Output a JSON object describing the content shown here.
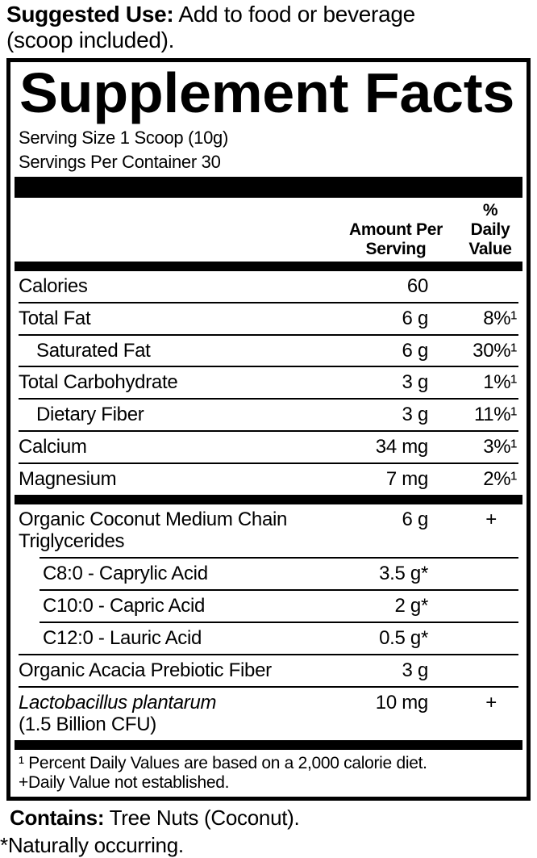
{
  "suggested_use": {
    "label": "Suggested Use:",
    "text": "Add to food or beverage (scoop included)."
  },
  "panel": {
    "title": "Supplement Facts",
    "serving_size": "Serving Size 1 Scoop (10g)",
    "servings_per_container": "Servings Per Container 30",
    "columns": {
      "amount_line1": "Amount Per",
      "amount_line2": "Serving",
      "dv_line1": "% Daily",
      "dv_line2": "Value"
    },
    "rows": [
      {
        "label": "Calories",
        "amount": "60",
        "dv": ""
      },
      {
        "label": "Total Fat",
        "amount": "6 g",
        "dv": "8%¹"
      },
      {
        "label": "Saturated Fat",
        "amount": "6 g",
        "dv": "30%¹"
      },
      {
        "label": "Total Carbohydrate",
        "amount": "3 g",
        "dv": "1%¹"
      },
      {
        "label": "Dietary Fiber",
        "amount": "3 g",
        "dv": "11%¹"
      },
      {
        "label": "Calcium",
        "amount": "34 mg",
        "dv": "3%¹"
      },
      {
        "label": "Magnesium",
        "amount": "7 mg",
        "dv": "2%¹"
      },
      {
        "label": "Organic Coconut Medium Chain Triglycerides",
        "amount": "6 g",
        "dv": "+"
      },
      {
        "label": "C8:0 - Caprylic Acid",
        "amount": "3.5 g*",
        "dv": ""
      },
      {
        "label": "C10:0 - Capric Acid",
        "amount": "2 g*",
        "dv": ""
      },
      {
        "label": "C12:0 - Lauric Acid",
        "amount": "0.5 g*",
        "dv": ""
      },
      {
        "label": "Organic Acacia Prebiotic Fiber",
        "amount": "3 g",
        "dv": ""
      },
      {
        "label": "Lactobacillus plantarum",
        "label2": "(1.5 Billion CFU)",
        "amount": "10 mg",
        "dv": "+"
      }
    ],
    "footnotes": {
      "daily_value": "¹ Percent Daily Values are based on a 2,000 calorie diet.",
      "not_established": "+Daily Value not established."
    }
  },
  "contains": {
    "label": "Contains:",
    "text": "Tree Nuts (Coconut)."
  },
  "naturally_occurring": "*Naturally occurring."
}
